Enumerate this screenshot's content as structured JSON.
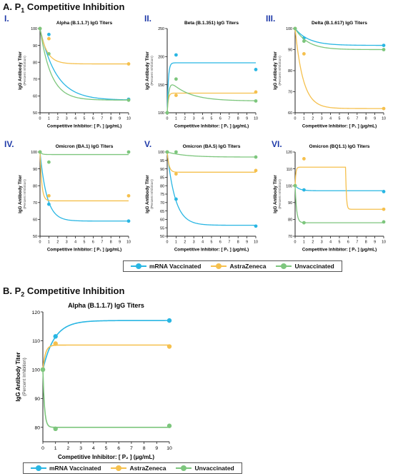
{
  "section_a": {
    "letter": "A. P",
    "sub": "1",
    "rest": " Competitive Inhibition"
  },
  "section_b": {
    "letter": "B. P",
    "sub": "2",
    "rest": " Competitive Inhibition"
  },
  "colors": {
    "mRNA Vaccinated": "#29b6e3",
    "AstraZeneca": "#f5c04d",
    "Unvaccinated": "#7dc67d"
  },
  "legend_a": [
    "mRNA Vaccinated",
    "AstraZeneca",
    "Unvaccinated"
  ],
  "legend_b": [
    "mRNA Vaccinated",
    "AstraZeneca",
    "Unvaccinated"
  ],
  "chart_data": [
    {
      "id": "I",
      "roman": "I.",
      "type": "line",
      "title": "Alpha (B.1.1.7) IgG Titers",
      "ylabel": "IgG Antibody Titer",
      "ysub": "(Percent Inhibition)",
      "xlabel": "Competitive Inhibitor: [ P₁ ] (μg/mL)",
      "xlim": [
        0,
        10
      ],
      "ylim": [
        50,
        100
      ],
      "yticks": [
        50,
        60,
        70,
        80,
        90,
        100
      ],
      "xticks": [
        0,
        1,
        2,
        3,
        4,
        5,
        6,
        7,
        8,
        9,
        10
      ],
      "series": [
        {
          "name": "mRNA Vaccinated",
          "points": [
            [
              0,
              100
            ],
            [
              1,
              96.5
            ],
            [
              10,
              58
            ]
          ],
          "curve": {
            "kind": "exp",
            "top": 100,
            "plateau": 57.5,
            "k": 0.55
          }
        },
        {
          "name": "AstraZeneca",
          "points": [
            [
              0,
              100
            ],
            [
              1,
              94
            ],
            [
              10,
              79
            ]
          ],
          "curve": {
            "kind": "exp",
            "top": 100,
            "plateau": 79,
            "k": 1.3
          }
        },
        {
          "name": "Unvaccinated",
          "points": [
            [
              0,
              100
            ],
            [
              1,
              85
            ],
            [
              10,
              57.5
            ]
          ],
          "curve": {
            "kind": "exp",
            "top": 100,
            "plateau": 57.5,
            "k": 0.8
          }
        }
      ]
    },
    {
      "id": "II",
      "roman": "II.",
      "type": "line",
      "title": "Beta (B.1.351) IgG Titers",
      "ylabel": "IgG Antibody Titer",
      "ysub": "(Percent Inhibition)",
      "xlabel": "Competitive Inhibitor: [ P₁ ] (μg/mL)",
      "xlim": [
        0,
        10
      ],
      "ylim": [
        100,
        250
      ],
      "yticks": [
        100,
        150,
        200,
        250
      ],
      "xticks": [
        0,
        1,
        2,
        3,
        4,
        5,
        6,
        7,
        8,
        9,
        10
      ],
      "series": [
        {
          "name": "mRNA Vaccinated",
          "points": [
            [
              0,
              100
            ],
            [
              1,
              203
            ],
            [
              10,
              177
            ]
          ],
          "curve": {
            "kind": "exp",
            "top": 100,
            "plateau": 189,
            "k": 8
          }
        },
        {
          "name": "AstraZeneca",
          "points": [
            [
              0,
              100
            ],
            [
              1,
              131
            ],
            [
              10,
              137
            ]
          ],
          "curve": {
            "kind": "exp",
            "top": 100,
            "plateau": 135,
            "k": 8
          }
        },
        {
          "name": "Unvaccinated",
          "points": [
            [
              0,
              100
            ],
            [
              1,
              160
            ],
            [
              10,
              121
            ]
          ],
          "curve": {
            "kind": "hump",
            "base": 100,
            "peak": 162,
            "plateau": 121,
            "rise": 5,
            "decay": 0.55
          }
        }
      ]
    },
    {
      "id": "III",
      "roman": "III.",
      "type": "line",
      "title": "Delta (B.1.617) IgG Titers",
      "ylabel": "IgG Antibody Titer",
      "ysub": "(Percent Inhibition)",
      "xlabel": "Competitive Inhibitor: [ P₁ ] (μg/mL)",
      "xlim": [
        0,
        10
      ],
      "ylim": [
        60,
        100
      ],
      "yticks": [
        60,
        70,
        80,
        90,
        100
      ],
      "xticks": [
        0,
        1,
        2,
        3,
        4,
        5,
        6,
        7,
        8,
        9,
        10
      ],
      "series": [
        {
          "name": "mRNA Vaccinated",
          "points": [
            [
              0,
              100
            ],
            [
              1,
              95.5
            ],
            [
              10,
              92
            ]
          ],
          "curve": {
            "kind": "exp",
            "top": 100,
            "plateau": 92,
            "k": 0.65
          }
        },
        {
          "name": "AstraZeneca",
          "points": [
            [
              0,
              100
            ],
            [
              1,
              88
            ],
            [
              10,
              62
            ]
          ],
          "curve": {
            "kind": "exp",
            "top": 100,
            "plateau": 62,
            "k": 1.1
          }
        },
        {
          "name": "Unvaccinated",
          "points": [
            [
              0,
              100
            ],
            [
              1,
              94
            ],
            [
              10,
              90
            ]
          ],
          "curve": {
            "kind": "exp",
            "top": 100,
            "plateau": 90,
            "k": 0.7
          }
        }
      ]
    },
    {
      "id": "IV",
      "roman": "IV.",
      "type": "line",
      "title": "Omicron (BA.1) IgG Titers",
      "ylabel": "IgG Antibody Titer",
      "ysub": "(Percent Inhibition)",
      "xlabel": "Competitive Inhibitor: [ P₁ ] (μg/mL)",
      "xlim": [
        0,
        10
      ],
      "ylim": [
        50,
        100
      ],
      "yticks": [
        50,
        60,
        70,
        80,
        90,
        100
      ],
      "xticks": [
        0,
        1,
        2,
        3,
        4,
        5,
        6,
        7,
        8,
        9,
        10
      ],
      "series": [
        {
          "name": "mRNA Vaccinated",
          "points": [
            [
              0,
              100
            ],
            [
              1,
              69
            ],
            [
              10,
              59
            ]
          ],
          "curve": {
            "kind": "exp",
            "top": 100,
            "plateau": 59,
            "k": 1.3
          }
        },
        {
          "name": "AstraZeneca",
          "points": [
            [
              0,
              100
            ],
            [
              1,
              74
            ],
            [
              10,
              74
            ]
          ],
          "curve": {
            "kind": "exp",
            "top": 100,
            "plateau": 71,
            "k": 5
          }
        },
        {
          "name": "Unvaccinated",
          "points": [
            [
              0,
              100
            ],
            [
              1,
              94
            ],
            [
              10,
              100.5
            ]
          ],
          "curve": {
            "kind": "exp",
            "top": 100,
            "plateau": 98.5,
            "k": 5
          }
        }
      ]
    },
    {
      "id": "V",
      "roman": "V.",
      "type": "line",
      "title": "Omicron (BA.5) IgG Titers",
      "ylabel": "IgG Antibody Titer",
      "ysub": "(Percent Inhibition)",
      "xlabel": "Competitive Inhibitor: [ P₁ ] (μg/mL)",
      "xlim": [
        0,
        10
      ],
      "ylim": [
        50,
        100
      ],
      "yticks": [
        50,
        55,
        60,
        65,
        70,
        75,
        80,
        85,
        90,
        95,
        100
      ],
      "xticks": [
        0,
        1,
        2,
        3,
        4,
        5,
        6,
        7,
        8,
        9,
        10
      ],
      "series": [
        {
          "name": "mRNA Vaccinated",
          "points": [
            [
              0,
              100
            ],
            [
              1,
              72
            ],
            [
              10,
              56
            ]
          ],
          "curve": {
            "kind": "exp",
            "top": 100,
            "plateau": 56.5,
            "k": 1.1
          }
        },
        {
          "name": "AstraZeneca",
          "points": [
            [
              0,
              100
            ],
            [
              1,
              87
            ],
            [
              10,
              89
            ]
          ],
          "curve": {
            "kind": "exp",
            "top": 100,
            "plateau": 88,
            "k": 5
          }
        },
        {
          "name": "Unvaccinated",
          "points": [
            [
              0,
              100
            ],
            [
              1,
              100
            ],
            [
              10,
              97
            ]
          ],
          "curve": {
            "kind": "exp",
            "top": 100,
            "plateau": 97,
            "k": 0.5
          }
        }
      ]
    },
    {
      "id": "VI",
      "roman": "VI.",
      "type": "line",
      "title": "Omicron (BQ1.1) IgG Titers",
      "ylabel": "IgG Antibody Titer",
      "ysub": "(Percent Inhibition)",
      "xlabel": "Competitive Inhibitor: [ P₁ ] (μg/mL)",
      "xlim": [
        0,
        10
      ],
      "ylim": [
        70,
        120
      ],
      "yticks": [
        70,
        80,
        90,
        100,
        110,
        120
      ],
      "xticks": [
        0,
        1,
        2,
        3,
        4,
        5,
        6,
        7,
        8,
        9,
        10
      ],
      "series": [
        {
          "name": "mRNA Vaccinated",
          "points": [
            [
              0,
              100
            ],
            [
              1,
              97.5
            ],
            [
              10,
              96.5
            ]
          ],
          "curve": {
            "kind": "exp",
            "top": 100,
            "plateau": 97,
            "k": 2
          }
        },
        {
          "name": "AstraZeneca",
          "points": [
            [
              0,
              100
            ],
            [
              1,
              116
            ],
            [
              10,
              86
            ]
          ],
          "curve": {
            "kind": "step",
            "top": 100,
            "high": 111,
            "low": 86,
            "rise": 12,
            "xstep": 5.7
          }
        },
        {
          "name": "Unvaccinated",
          "points": [
            [
              0,
              100
            ],
            [
              1,
              78
            ],
            [
              10,
              78.5
            ]
          ],
          "curve": {
            "kind": "exp",
            "top": 100,
            "plateau": 78,
            "k": 6
          }
        }
      ]
    },
    {
      "id": "B",
      "roman": "",
      "type": "line",
      "title": "Alpha (B.1.1.7) IgG Titers",
      "ylabel": "IgG Antibody Titer",
      "ysub": "(Percent Inhibition)",
      "xlabel": "Competitive Inhibitor: [ P₂ ] (μg/mL)",
      "xlim": [
        0,
        10
      ],
      "ylim": [
        75,
        120
      ],
      "yticks": [
        80,
        90,
        100,
        110,
        120
      ],
      "xticks": [
        0,
        1,
        2,
        3,
        4,
        5,
        6,
        7,
        8,
        9,
        10
      ],
      "series": [
        {
          "name": "mRNA Vaccinated",
          "points": [
            [
              0,
              100
            ],
            [
              1,
              111.5
            ],
            [
              10,
              117
            ]
          ],
          "curve": {
            "kind": "exp",
            "top": 100,
            "plateau": 117,
            "k": 1.1
          }
        },
        {
          "name": "AstraZeneca",
          "points": [
            [
              0,
              100
            ],
            [
              1,
              109
            ],
            [
              10,
              108
            ]
          ],
          "curve": {
            "kind": "exp",
            "top": 100,
            "plateau": 108.5,
            "k": 5
          }
        },
        {
          "name": "Unvaccinated",
          "points": [
            [
              0,
              100
            ],
            [
              1,
              79.5
            ],
            [
              10,
              80.5
            ]
          ],
          "curve": {
            "kind": "exp",
            "top": 100,
            "plateau": 80,
            "k": 8
          }
        }
      ]
    }
  ]
}
